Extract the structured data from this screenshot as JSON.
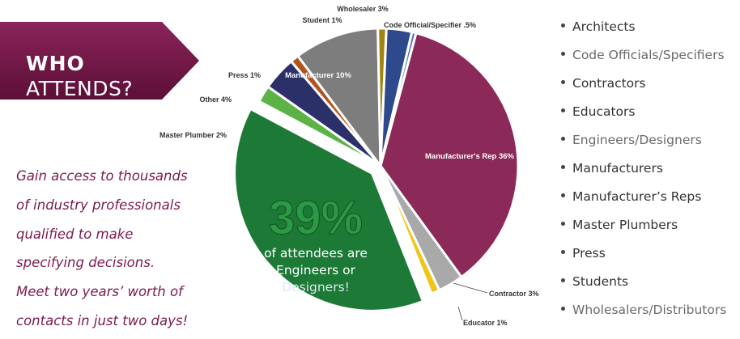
{
  "banner": {
    "line1": "WHO",
    "line2": "ATTENDS?"
  },
  "blurb": [
    "Gain access to thousands",
    "of industry professionals",
    "qualified to make",
    "specifying decisions.",
    "Meet two years’ worth of",
    "contacts in just two days!"
  ],
  "callout": {
    "big": "39%",
    "line1": "of attendees are",
    "line2": "Engineers or",
    "line3": "Designers!"
  },
  "legend": [
    "Architects",
    "Code Officials/Specifiers",
    "Contractors",
    "Educators",
    "Engineers/Designers",
    "Manufacturers",
    "Manufacturer’s Reps",
    "Master Plumbers",
    "Press",
    "Students",
    "Wholesalers/Distributors"
  ],
  "colors": {
    "banner": "#7b1a4e",
    "text_accent": "#7b1a4e"
  },
  "chart_data": {
    "type": "pie",
    "slices": [
      {
        "label": "Manufacturer's Rep 36%",
        "value": 36,
        "color": "#8b2a58",
        "label_pos": "inside"
      },
      {
        "label": "Contractor 3%",
        "value": 3,
        "color": "#a9a9a9",
        "label_pos": "outside"
      },
      {
        "label": "Educator 1%",
        "value": 1,
        "color": "#f0c419",
        "label_pos": "outside"
      },
      {
        "label": "",
        "value": 39,
        "color": "#1d7a36",
        "label_pos": "none"
      },
      {
        "label": "Master Plumber 2%",
        "value": 2,
        "color": "#5bb346",
        "label_pos": "outside"
      },
      {
        "label": "Other 4%",
        "value": 4,
        "color": "#2c3068",
        "label_pos": "outside"
      },
      {
        "label": "Press 1%",
        "value": 1,
        "color": "#b3541e",
        "label_pos": "outside"
      },
      {
        "label": "Manufacturer 10%",
        "value": 10,
        "color": "#7d7d7d",
        "label_pos": "inside"
      },
      {
        "label": "Student 1%",
        "value": 1,
        "color": "#a18512",
        "label_pos": "outside"
      },
      {
        "label": "Wholesaler 3%",
        "value": 3,
        "color": "#2e4a8c",
        "label_pos": "outside"
      },
      {
        "label": "Code Official/Specifier .5%",
        "value": 0.5,
        "color": "#5a79c0",
        "label_pos": "outside"
      }
    ]
  }
}
